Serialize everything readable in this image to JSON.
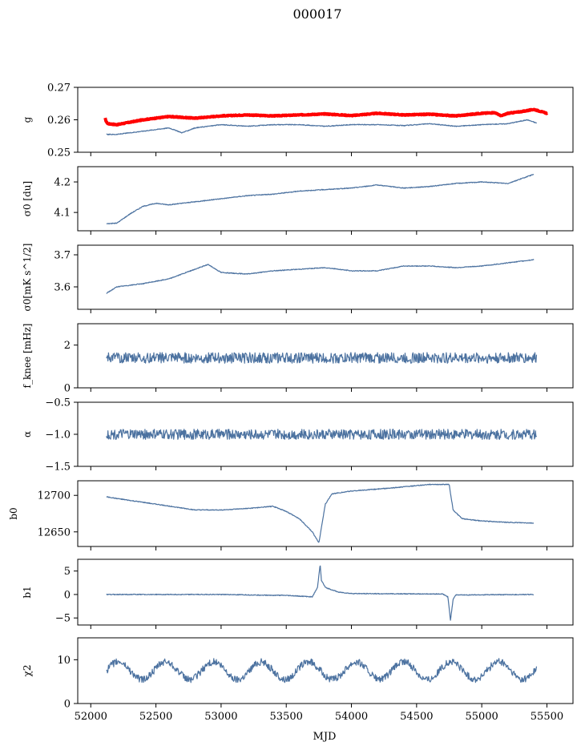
{
  "figure": {
    "title": "000017",
    "xlabel": "MJD"
  },
  "colors": {
    "blue": "#4c72a0",
    "red": "#ff0000"
  },
  "chart_data": [
    {
      "type": "line",
      "ylabel": "g",
      "ylim": [
        0.25,
        0.27
      ],
      "yticks": [
        "0.25",
        "0.26",
        "0.27"
      ],
      "yvals": [
        0.25,
        0.26,
        0.27
      ],
      "series": [
        {
          "color": "red",
          "width": 4,
          "x": [
            52110,
            52118,
            52130,
            52200,
            52400,
            52600,
            52800,
            53000,
            53200,
            53400,
            53600,
            53800,
            54000,
            54200,
            54400,
            54600,
            54800,
            55000,
            55100,
            55150,
            55200,
            55300,
            55400,
            55500
          ],
          "y": [
            0.2605,
            0.2595,
            0.2588,
            0.2585,
            0.26,
            0.261,
            0.2605,
            0.2612,
            0.2615,
            0.2612,
            0.2615,
            0.2618,
            0.2613,
            0.262,
            0.2615,
            0.2617,
            0.2612,
            0.262,
            0.2622,
            0.2612,
            0.262,
            0.2625,
            0.2632,
            0.262
          ]
        },
        {
          "color": "blue",
          "width": 1.2,
          "x": [
            52120,
            52200,
            52400,
            52600,
            52700,
            52800,
            53000,
            53200,
            53400,
            53600,
            53800,
            54000,
            54200,
            54400,
            54600,
            54800,
            55000,
            55200,
            55350,
            55420
          ],
          "y": [
            0.2555,
            0.2555,
            0.2565,
            0.2575,
            0.256,
            0.2575,
            0.2585,
            0.258,
            0.2585,
            0.2585,
            0.258,
            0.2585,
            0.2585,
            0.2582,
            0.2588,
            0.258,
            0.2585,
            0.2588,
            0.26,
            0.259
          ]
        }
      ]
    },
    {
      "type": "line",
      "ylabel": "σ0 [du]",
      "ylim": [
        4.04,
        4.25
      ],
      "yticks": [
        "4.1",
        "4.2"
      ],
      "yvals": [
        4.1,
        4.2
      ],
      "series": [
        {
          "color": "blue",
          "width": 1.2,
          "x": [
            52120,
            52200,
            52300,
            52400,
            52500,
            52600,
            52800,
            53000,
            53200,
            53400,
            53600,
            53800,
            54000,
            54200,
            54400,
            54600,
            54800,
            55000,
            55200,
            55300,
            55400
          ],
          "y": [
            4.063,
            4.065,
            4.095,
            4.12,
            4.13,
            4.125,
            4.135,
            4.145,
            4.155,
            4.16,
            4.17,
            4.175,
            4.18,
            4.19,
            4.18,
            4.185,
            4.195,
            4.2,
            4.195,
            4.21,
            4.225
          ]
        }
      ]
    },
    {
      "type": "line",
      "ylabel": "σ0[mK s^1/2]",
      "ylim": [
        3.53,
        3.73
      ],
      "yticks": [
        "3.6",
        "3.7"
      ],
      "yvals": [
        3.6,
        3.7
      ],
      "series": [
        {
          "color": "blue",
          "width": 1.2,
          "x": [
            52120,
            52200,
            52400,
            52600,
            52900,
            53000,
            53200,
            53400,
            53600,
            53800,
            54000,
            54200,
            54400,
            54600,
            54800,
            55000,
            55200,
            55400
          ],
          "y": [
            3.58,
            3.6,
            3.61,
            3.625,
            3.67,
            3.645,
            3.64,
            3.65,
            3.655,
            3.66,
            3.65,
            3.65,
            3.665,
            3.665,
            3.66,
            3.665,
            3.675,
            3.685
          ]
        }
      ]
    },
    {
      "type": "line",
      "ylabel": "f_knee [mHz]",
      "ylim": [
        0,
        3
      ],
      "yticks": [
        "0",
        "2"
      ],
      "yvals": [
        0,
        2
      ],
      "series": [
        {
          "color": "blue",
          "width": 1.2,
          "x": [
            52120,
            55420
          ],
          "y": [
            1.4,
            1.4
          ],
          "noise": 0.25
        }
      ]
    },
    {
      "type": "line",
      "ylabel": "α",
      "ylim": [
        -1.5,
        -0.5
      ],
      "yticks": [
        "−1.5",
        "−1.0",
        "−0.5"
      ],
      "yvals": [
        -1.5,
        -1.0,
        -0.5
      ],
      "series": [
        {
          "color": "blue",
          "width": 1.2,
          "x": [
            52120,
            55420
          ],
          "y": [
            -1.0,
            -1.0
          ],
          "noise": 0.08
        }
      ]
    },
    {
      "type": "line",
      "ylabel": "b0",
      "ylim": [
        12630,
        12720
      ],
      "yticks": [
        "12650",
        "12700"
      ],
      "yvals": [
        12650,
        12700
      ],
      "series": [
        {
          "color": "blue",
          "width": 1.2,
          "x": [
            52120,
            52300,
            52500,
            52800,
            53000,
            53200,
            53400,
            53500,
            53600,
            53700,
            53750,
            53800,
            53850,
            54000,
            54300,
            54600,
            54750,
            54780,
            54850,
            55000,
            55200,
            55400
          ],
          "y": [
            12698,
            12693,
            12688,
            12680,
            12680,
            12682,
            12685,
            12678,
            12668,
            12650,
            12635,
            12688,
            12702,
            12706,
            12710,
            12715,
            12715,
            12680,
            12668,
            12665,
            12663,
            12662
          ]
        }
      ]
    },
    {
      "type": "line",
      "ylabel": "b1",
      "ylim": [
        -6.5,
        7.5
      ],
      "yticks": [
        "−5",
        "0",
        "5"
      ],
      "yvals": [
        -5,
        0,
        5
      ],
      "series": [
        {
          "color": "blue",
          "width": 1.2,
          "x": [
            52120,
            53000,
            53500,
            53700,
            53740,
            53760,
            53770,
            53800,
            53900,
            54000,
            54700,
            54740,
            54760,
            54780,
            54800,
            55400
          ],
          "y": [
            0.0,
            0.0,
            -0.2,
            -0.5,
            1.5,
            6.5,
            3.0,
            1.5,
            0.5,
            0.2,
            0.1,
            -0.5,
            -5.5,
            -1.0,
            -0.1,
            0.0
          ]
        }
      ]
    },
    {
      "type": "line",
      "ylabel": "χ2",
      "ylim": [
        0,
        15
      ],
      "yticks": [
        "0",
        "10"
      ],
      "yvals": [
        0,
        10
      ],
      "series": [
        {
          "color": "blue",
          "width": 1.2,
          "x": [
            52120,
            55420
          ],
          "y": [
            7.5,
            7.5
          ],
          "noise": 0.8,
          "period": 365,
          "amplitude": 2.0
        }
      ]
    }
  ],
  "xaxis": {
    "range": [
      51900,
      55700
    ],
    "ticks": [
      "52000",
      "52500",
      "53000",
      "53500",
      "54000",
      "54500",
      "55000",
      "55500"
    ],
    "values": [
      52000,
      52500,
      53000,
      53500,
      54000,
      54500,
      55000,
      55500
    ]
  }
}
